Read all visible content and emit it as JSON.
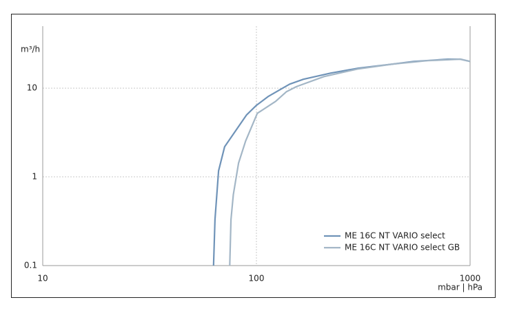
{
  "chart_data": {
    "type": "line",
    "y_label": "m³/h",
    "x_label": "mbar | hPa",
    "xscale": "log",
    "yscale": "log",
    "xlim": [
      10,
      1000
    ],
    "ylim": [
      0.1,
      50
    ],
    "xticks": [
      10,
      100,
      1000
    ],
    "yticks": [
      0.1,
      1,
      10
    ],
    "grid": true,
    "legend": "lower right",
    "series": [
      {
        "name": "ME 16C NT VARIO select",
        "color": "#6f93b8",
        "x": [
          63,
          64,
          66.5,
          71,
          90,
          100,
          114,
          143,
          166,
          223,
          300,
          435,
          544,
          788,
          900,
          1000
        ],
        "values": [
          0.1,
          0.33,
          1.17,
          2.19,
          5.0,
          6.4,
          8.1,
          11.1,
          12.6,
          14.8,
          16.8,
          18.7,
          20,
          21.2,
          21.2,
          20
        ]
      },
      {
        "name": "ME 16C NT VARIO select GB",
        "color": "#a3b6c6",
        "x": [
          75,
          76,
          78,
          82.5,
          89,
          101,
          123,
          138,
          154,
          207,
          300,
          435,
          631,
          900,
          1000
        ],
        "values": [
          0.1,
          0.33,
          0.63,
          1.43,
          2.53,
          5.2,
          7.1,
          9.1,
          10.4,
          13.5,
          16.5,
          18.7,
          20.4,
          21.2,
          20
        ]
      }
    ]
  }
}
